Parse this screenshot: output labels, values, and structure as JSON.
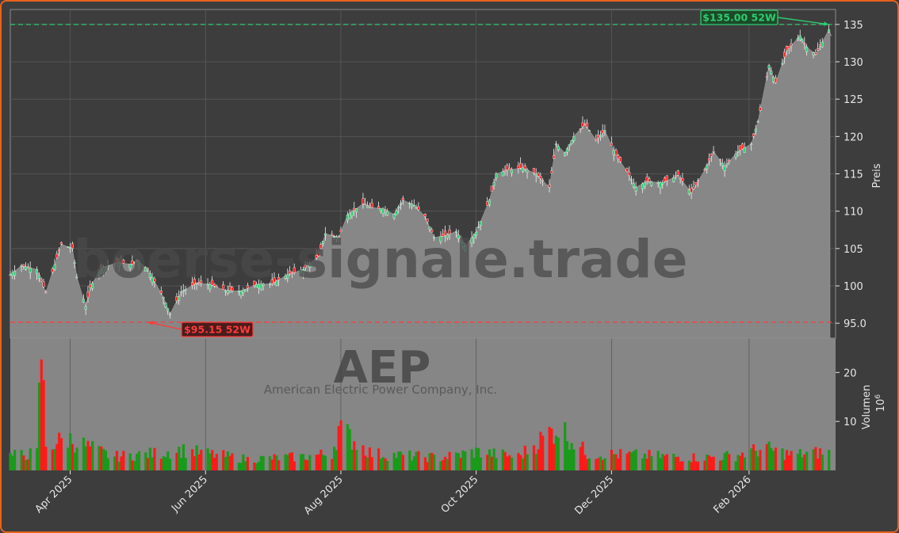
{
  "chart_data": {
    "type": "line",
    "subtype": "candlestick-with-volume",
    "ticker": "AEP",
    "company": "American Electric Power Company, Inc.",
    "watermark": "boerse-signale.trade",
    "ylabel": "Preis",
    "volume_label": "Volumen",
    "volume_unit": "10",
    "volume_unit_exp": "6",
    "ylim": [
      93,
      137
    ],
    "y_ticks": [
      95,
      100,
      105,
      110,
      115,
      120,
      125,
      130,
      135
    ],
    "y_tick_labels": [
      "95.0",
      "100",
      "105",
      "110",
      "115",
      "120",
      "125",
      "130",
      "135"
    ],
    "volume_ylim": [
      0,
      27
    ],
    "volume_ticks": [
      10,
      20
    ],
    "volume_tick_labels": [
      "10",
      "20"
    ],
    "x_range": [
      "2025-03-05",
      "2026-03-12"
    ],
    "x_ticks": [
      "2025-04-01",
      "2025-06-01",
      "2025-08-01",
      "2025-10-01",
      "2025-12-01",
      "2026-02-01"
    ],
    "x_tick_labels": [
      "Apr 2025",
      "Jun 2025",
      "Aug 2025",
      "Oct 2025",
      "Dec 2025",
      "Feb 2026"
    ],
    "grid": true,
    "high_52w": {
      "value": 135.0,
      "date": "2026-03-09",
      "label": "$135.00 52W",
      "color": "#2ecc71"
    },
    "low_52w": {
      "value": 95.15,
      "date": "2025-05-06",
      "label": "$95.15 52W",
      "color": "#ff3b3b"
    },
    "up_color": "#2ecc71",
    "down_color": "#ff2020",
    "volume_up_color": "#1a9a1a",
    "volume_down_color": "#ff1a1a",
    "price_anchors": [
      [
        "2025-03-05",
        101.5
      ],
      [
        "2025-03-10",
        102.7
      ],
      [
        "2025-03-17",
        102.2
      ],
      [
        "2025-03-21",
        99.1
      ],
      [
        "2025-03-25",
        102.8
      ],
      [
        "2025-03-28",
        105.6
      ],
      [
        "2025-04-02",
        105.0
      ],
      [
        "2025-04-04",
        101.2
      ],
      [
        "2025-04-08",
        97.2
      ],
      [
        "2025-04-10",
        99.8
      ],
      [
        "2025-04-15",
        102.4
      ],
      [
        "2025-04-22",
        103.1
      ],
      [
        "2025-04-29",
        102.9
      ],
      [
        "2025-05-01",
        103.5
      ],
      [
        "2025-05-06",
        102.2
      ],
      [
        "2025-05-13",
        98.5
      ],
      [
        "2025-05-16",
        96.2
      ],
      [
        "2025-05-21",
        99.2
      ],
      [
        "2025-05-28",
        100.4
      ],
      [
        "2025-06-03",
        100.2
      ],
      [
        "2025-06-10",
        99.4
      ],
      [
        "2025-06-17",
        99.3
      ],
      [
        "2025-06-24",
        100.2
      ],
      [
        "2025-07-01",
        100.3
      ],
      [
        "2025-07-08",
        101.5
      ],
      [
        "2025-07-15",
        102.2
      ],
      [
        "2025-07-22",
        104.0
      ],
      [
        "2025-07-25",
        107.0
      ],
      [
        "2025-07-31",
        106.5
      ],
      [
        "2025-08-04",
        109.5
      ],
      [
        "2025-08-11",
        111.0
      ],
      [
        "2025-08-15",
        110.5
      ],
      [
        "2025-08-20",
        110.3
      ],
      [
        "2025-08-25",
        109.6
      ],
      [
        "2025-08-29",
        111.5
      ],
      [
        "2025-09-03",
        110.8
      ],
      [
        "2025-09-08",
        109.3
      ],
      [
        "2025-09-12",
        106.5
      ],
      [
        "2025-09-17",
        106.7
      ],
      [
        "2025-09-22",
        107.3
      ],
      [
        "2025-09-26",
        105.3
      ],
      [
        "2025-10-01",
        107.2
      ],
      [
        "2025-10-07",
        111.5
      ],
      [
        "2025-10-10",
        115.0
      ],
      [
        "2025-10-15",
        115.5
      ],
      [
        "2025-10-22",
        115.8
      ],
      [
        "2025-10-28",
        115.0
      ],
      [
        "2025-11-03",
        113.2
      ],
      [
        "2025-11-06",
        119.0
      ],
      [
        "2025-11-10",
        117.8
      ],
      [
        "2025-11-14",
        120.0
      ],
      [
        "2025-11-19",
        121.7
      ],
      [
        "2025-11-24",
        119.5
      ],
      [
        "2025-11-28",
        120.8
      ],
      [
        "2025-12-03",
        117.5
      ],
      [
        "2025-12-08",
        115.3
      ],
      [
        "2025-12-12",
        113.2
      ],
      [
        "2025-12-17",
        114.0
      ],
      [
        "2025-12-24",
        113.8
      ],
      [
        "2025-12-31",
        114.8
      ],
      [
        "2026-01-06",
        112.5
      ],
      [
        "2026-01-12",
        115.5
      ],
      [
        "2026-01-16",
        118.0
      ],
      [
        "2026-01-21",
        116.0
      ],
      [
        "2026-01-27",
        118.0
      ],
      [
        "2026-02-02",
        119.0
      ],
      [
        "2026-02-05",
        122.0
      ],
      [
        "2026-02-10",
        129.5
      ],
      [
        "2026-02-13",
        127.2
      ],
      [
        "2026-02-18",
        131.5
      ],
      [
        "2026-02-24",
        133.5
      ],
      [
        "2026-02-27",
        132.0
      ],
      [
        "2026-03-03",
        131.0
      ],
      [
        "2026-03-09",
        134.3
      ]
    ],
    "volume_anchors": [
      [
        "2025-03-05",
        3.0
      ],
      [
        "2025-03-17",
        3.5
      ],
      [
        "2025-03-19",
        25.0
      ],
      [
        "2025-03-21",
        5.0
      ],
      [
        "2025-03-31",
        6.5
      ],
      [
        "2025-04-08",
        5.0
      ],
      [
        "2025-04-20",
        2.8
      ],
      [
        "2025-05-10",
        3.5
      ],
      [
        "2025-05-20",
        4.2
      ],
      [
        "2025-06-20",
        2.3
      ],
      [
        "2025-07-15",
        2.8
      ],
      [
        "2025-07-28",
        3.5
      ],
      [
        "2025-07-31",
        8.5
      ],
      [
        "2025-08-15",
        3.4
      ],
      [
        "2025-09-15",
        2.6
      ],
      [
        "2025-10-01",
        3.8
      ],
      [
        "2025-10-20",
        2.8
      ],
      [
        "2025-11-07",
        9.0
      ],
      [
        "2025-11-20",
        3.4
      ],
      [
        "2025-12-08",
        3.2
      ],
      [
        "2026-01-10",
        2.6
      ],
      [
        "2026-01-25",
        3.0
      ],
      [
        "2026-02-08",
        4.5
      ],
      [
        "2026-02-20",
        3.2
      ],
      [
        "2026-03-10",
        3.8
      ]
    ]
  }
}
